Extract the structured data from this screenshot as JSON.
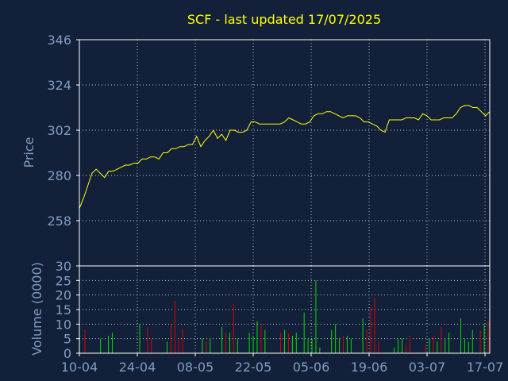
{
  "chart_data": [
    {
      "type": "line",
      "title": "SCF - last updated 17/07/2025",
      "xlabel": "",
      "ylabel": "Price",
      "ylim": [
        236,
        346
      ],
      "y_ticks": [
        346,
        324,
        302,
        280,
        258
      ],
      "x_tick_labels": [
        "10-04",
        "24-04",
        "08-05",
        "22-05",
        "05-06",
        "19-06",
        "03-07",
        "17-07"
      ],
      "grid": true,
      "color": "#ffff00",
      "series": [
        {
          "values": [
            264,
            269,
            275,
            281,
            283,
            281,
            279,
            282,
            282,
            283,
            284,
            285,
            285,
            286,
            286,
            288,
            288,
            289,
            289,
            288,
            291,
            291,
            293,
            293,
            294,
            294,
            295,
            295,
            299,
            294,
            297,
            299,
            302,
            298,
            300,
            297,
            302,
            302,
            301,
            301,
            302,
            306,
            306,
            305,
            305,
            305,
            305,
            305,
            305,
            306,
            308,
            307,
            306,
            305,
            305,
            306,
            309,
            310,
            310,
            311,
            311,
            310,
            309,
            308,
            309,
            309,
            309,
            308,
            306,
            306,
            305,
            304,
            302,
            301,
            307,
            307,
            307,
            307,
            308,
            308,
            308,
            307,
            310,
            309,
            307,
            307,
            307,
            308,
            308,
            308,
            310,
            313,
            314,
            314,
            313,
            313,
            311,
            309,
            311
          ]
        }
      ]
    },
    {
      "type": "bar",
      "ylabel": "Volume (0000)",
      "ylim": [
        0,
        30
      ],
      "y_ticks": [
        30,
        25,
        20,
        15,
        10,
        5,
        0
      ],
      "up_color": "#00dd00",
      "down_color": "#dd0000",
      "values": [
        0,
        8,
        0,
        0,
        0,
        5,
        0,
        6,
        7,
        0,
        0,
        0,
        0,
        0,
        0,
        10,
        0,
        9,
        5,
        0,
        0,
        0,
        4,
        10,
        18,
        5,
        8,
        0,
        0,
        0,
        0,
        5,
        4,
        5,
        0,
        0,
        9,
        7,
        7,
        17,
        5,
        0,
        0,
        7,
        6,
        11,
        10,
        8,
        0,
        0,
        0,
        7,
        8,
        7,
        6,
        7,
        0,
        14,
        5,
        5,
        25,
        2,
        0,
        0,
        8,
        10,
        5,
        6,
        6,
        5,
        0,
        0,
        12,
        8,
        16,
        19,
        4,
        0,
        0,
        0,
        2,
        5,
        5,
        3,
        6,
        0,
        0,
        0,
        3,
        5,
        6,
        4,
        9,
        5,
        7,
        0,
        0,
        12,
        5,
        4,
        8,
        0,
        8,
        10,
        11
      ],
      "directions": [
        "n",
        "d",
        "n",
        "n",
        "n",
        "u",
        "n",
        "u",
        "u",
        "n",
        "n",
        "n",
        "n",
        "n",
        "n",
        "u",
        "n",
        "d",
        "d",
        "n",
        "n",
        "n",
        "u",
        "d",
        "d",
        "d",
        "d",
        "n",
        "n",
        "n",
        "n",
        "u",
        "d",
        "u",
        "n",
        "n",
        "u",
        "d",
        "u",
        "d",
        "u",
        "n",
        "n",
        "u",
        "u",
        "u",
        "d",
        "u",
        "n",
        "n",
        "n",
        "d",
        "u",
        "d",
        "u",
        "u",
        "n",
        "u",
        "u",
        "u",
        "u",
        "u",
        "n",
        "n",
        "u",
        "u",
        "u",
        "d",
        "u",
        "u",
        "n",
        "n",
        "u",
        "d",
        "d",
        "d",
        "d",
        "n",
        "n",
        "n",
        "u",
        "u",
        "u",
        "d",
        "d",
        "n",
        "n",
        "n",
        "d",
        "u",
        "d",
        "u",
        "d",
        "u",
        "u",
        "n",
        "n",
        "u",
        "u",
        "u",
        "u",
        "n",
        "d",
        "u",
        "d"
      ]
    }
  ]
}
